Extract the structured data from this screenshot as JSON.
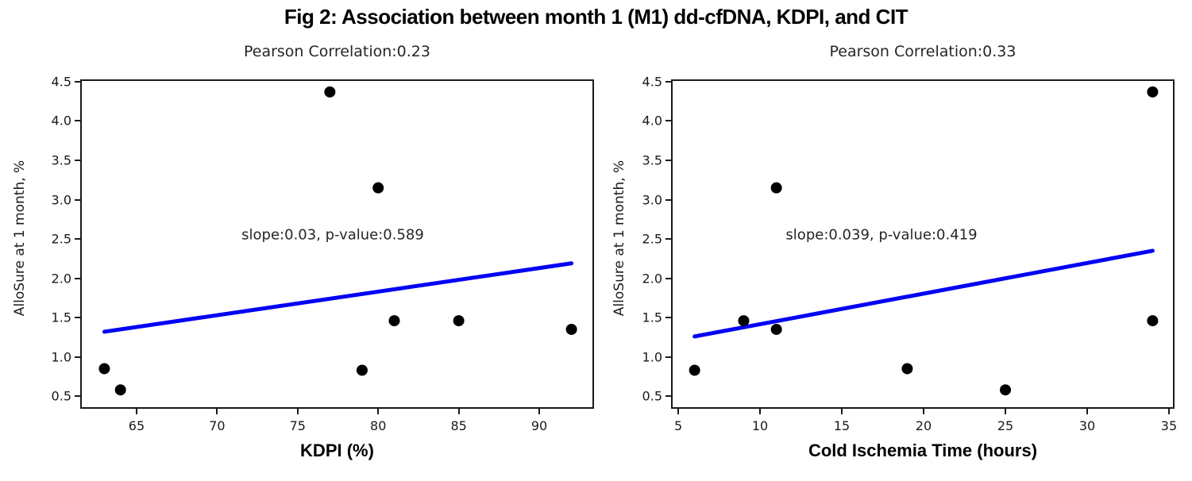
{
  "figure": {
    "title": "Fig 2: Association between month 1 (M1) dd-cfDNA, KDPI, and CIT"
  },
  "colors": {
    "marker": "#000000",
    "trend_line": "#0000f5",
    "axis_text": "#1a1a1a"
  },
  "chart_data": [
    {
      "type": "scatter",
      "title": "Pearson Correlation:0.23",
      "xlabel": "KDPI (%)",
      "ylabel": "AlloSure at 1 month, %",
      "annotation": "slope:0.03, p-value:0.589",
      "pearson_correlation": 0.23,
      "slope": 0.03,
      "p_value": 0.589,
      "points": [
        [
          63,
          0.85
        ],
        [
          64,
          0.58
        ],
        [
          77,
          4.37
        ],
        [
          79,
          0.83
        ],
        [
          80,
          3.15
        ],
        [
          81,
          1.46
        ],
        [
          85,
          1.46
        ],
        [
          92,
          1.35
        ]
      ],
      "trend_line": {
        "x": [
          63,
          92
        ],
        "y": [
          1.32,
          2.19
        ]
      },
      "xlim": [
        61.5,
        93.4
      ],
      "ylim": [
        0.34,
        4.53
      ],
      "xticks": [
        65,
        70,
        75,
        80,
        85,
        90
      ],
      "yticks": [
        0.5,
        1.0,
        1.5,
        2.0,
        2.5,
        3.0,
        3.5,
        4.0,
        4.5
      ],
      "ytick_labels": [
        "0.5",
        "1.0",
        "1.5",
        "2.0",
        "2.5",
        "3.0",
        "3.5",
        "4.0",
        "4.5"
      ],
      "grid": false,
      "legend": null
    },
    {
      "type": "scatter",
      "title": "Pearson Correlation:0.33",
      "xlabel": "Cold Ischemia Time (hours)",
      "ylabel": "AlloSure at 1 month, %",
      "annotation": "slope:0.039, p-value:0.419",
      "pearson_correlation": 0.33,
      "slope": 0.039,
      "p_value": 0.419,
      "points": [
        [
          6,
          0.83
        ],
        [
          9,
          1.46
        ],
        [
          11,
          3.15
        ],
        [
          11,
          1.35
        ],
        [
          19,
          0.85
        ],
        [
          25,
          0.58
        ],
        [
          34,
          4.37
        ],
        [
          34,
          1.46
        ]
      ],
      "trend_line": {
        "x": [
          6,
          34
        ],
        "y": [
          1.26,
          2.35
        ]
      },
      "xlim": [
        4.56,
        35.34
      ],
      "ylim": [
        0.34,
        4.53
      ],
      "xticks": [
        5,
        10,
        15,
        20,
        25,
        30,
        35
      ],
      "yticks": [
        0.5,
        1.0,
        1.5,
        2.0,
        2.5,
        3.0,
        3.5,
        4.0,
        4.5
      ],
      "ytick_labels": [
        "0.5",
        "1.0",
        "1.5",
        "2.0",
        "2.5",
        "3.0",
        "3.5",
        "4.0",
        "4.5"
      ],
      "grid": false,
      "legend": null
    }
  ]
}
